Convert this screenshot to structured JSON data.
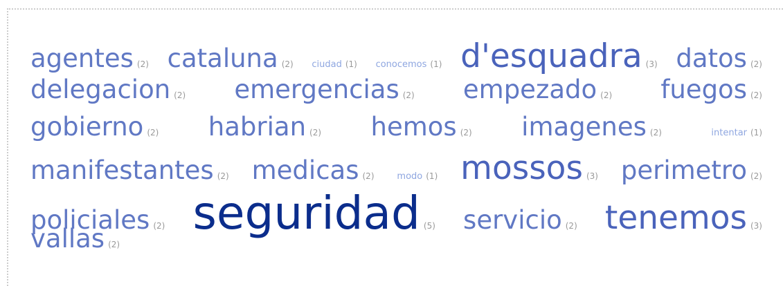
{
  "tag_cloud": {
    "rows": [
      [
        {
          "word": "agentes",
          "count": {
            "value": 2,
            "label": "(2)"
          }
        },
        {
          "word": "cataluna",
          "count": {
            "value": 2,
            "label": "(2)"
          }
        },
        {
          "word": "ciudad",
          "count": {
            "value": 1,
            "label": "(1)"
          }
        },
        {
          "word": "conocemos",
          "count": {
            "value": 1,
            "label": "(1)"
          }
        },
        {
          "word": "d'esquadra",
          "count": {
            "value": 3,
            "label": "(3)"
          }
        },
        {
          "word": "datos",
          "count": {
            "value": 2,
            "label": "(2)"
          }
        }
      ],
      [
        {
          "word": "delegacion",
          "count": {
            "value": 2,
            "label": "(2)"
          }
        },
        {
          "word": "emergencias",
          "count": {
            "value": 2,
            "label": "(2)"
          }
        },
        {
          "word": "empezado",
          "count": {
            "value": 2,
            "label": "(2)"
          }
        },
        {
          "word": "fuegos",
          "count": {
            "value": 2,
            "label": "(2)"
          }
        }
      ],
      [
        {
          "word": "gobierno",
          "count": {
            "value": 2,
            "label": "(2)"
          }
        },
        {
          "word": "habrian",
          "count": {
            "value": 2,
            "label": "(2)"
          }
        },
        {
          "word": "hemos",
          "count": {
            "value": 2,
            "label": "(2)"
          }
        },
        {
          "word": "imagenes",
          "count": {
            "value": 2,
            "label": "(2)"
          }
        },
        {
          "word": "intentar",
          "count": {
            "value": 1,
            "label": "(1)"
          }
        }
      ],
      [
        {
          "word": "manifestantes",
          "count": {
            "value": 2,
            "label": "(2)"
          }
        },
        {
          "word": "medicas",
          "count": {
            "value": 2,
            "label": "(2)"
          }
        },
        {
          "word": "modo",
          "count": {
            "value": 1,
            "label": "(1)"
          }
        },
        {
          "word": "mossos",
          "count": {
            "value": 3,
            "label": "(3)"
          }
        },
        {
          "word": "perimetro",
          "count": {
            "value": 2,
            "label": "(2)"
          }
        }
      ],
      [
        {
          "word": "policiales",
          "count": {
            "value": 2,
            "label": "(2)"
          }
        },
        {
          "word": "seguridad",
          "count": {
            "value": 5,
            "label": "(5)"
          }
        },
        {
          "word": "servicio",
          "count": {
            "value": 2,
            "label": "(2)"
          }
        },
        {
          "word": "tenemos",
          "count": {
            "value": 3,
            "label": "(3)"
          }
        }
      ],
      [
        {
          "word": "vallas",
          "count": {
            "value": 2,
            "label": "(2)"
          }
        }
      ]
    ]
  }
}
